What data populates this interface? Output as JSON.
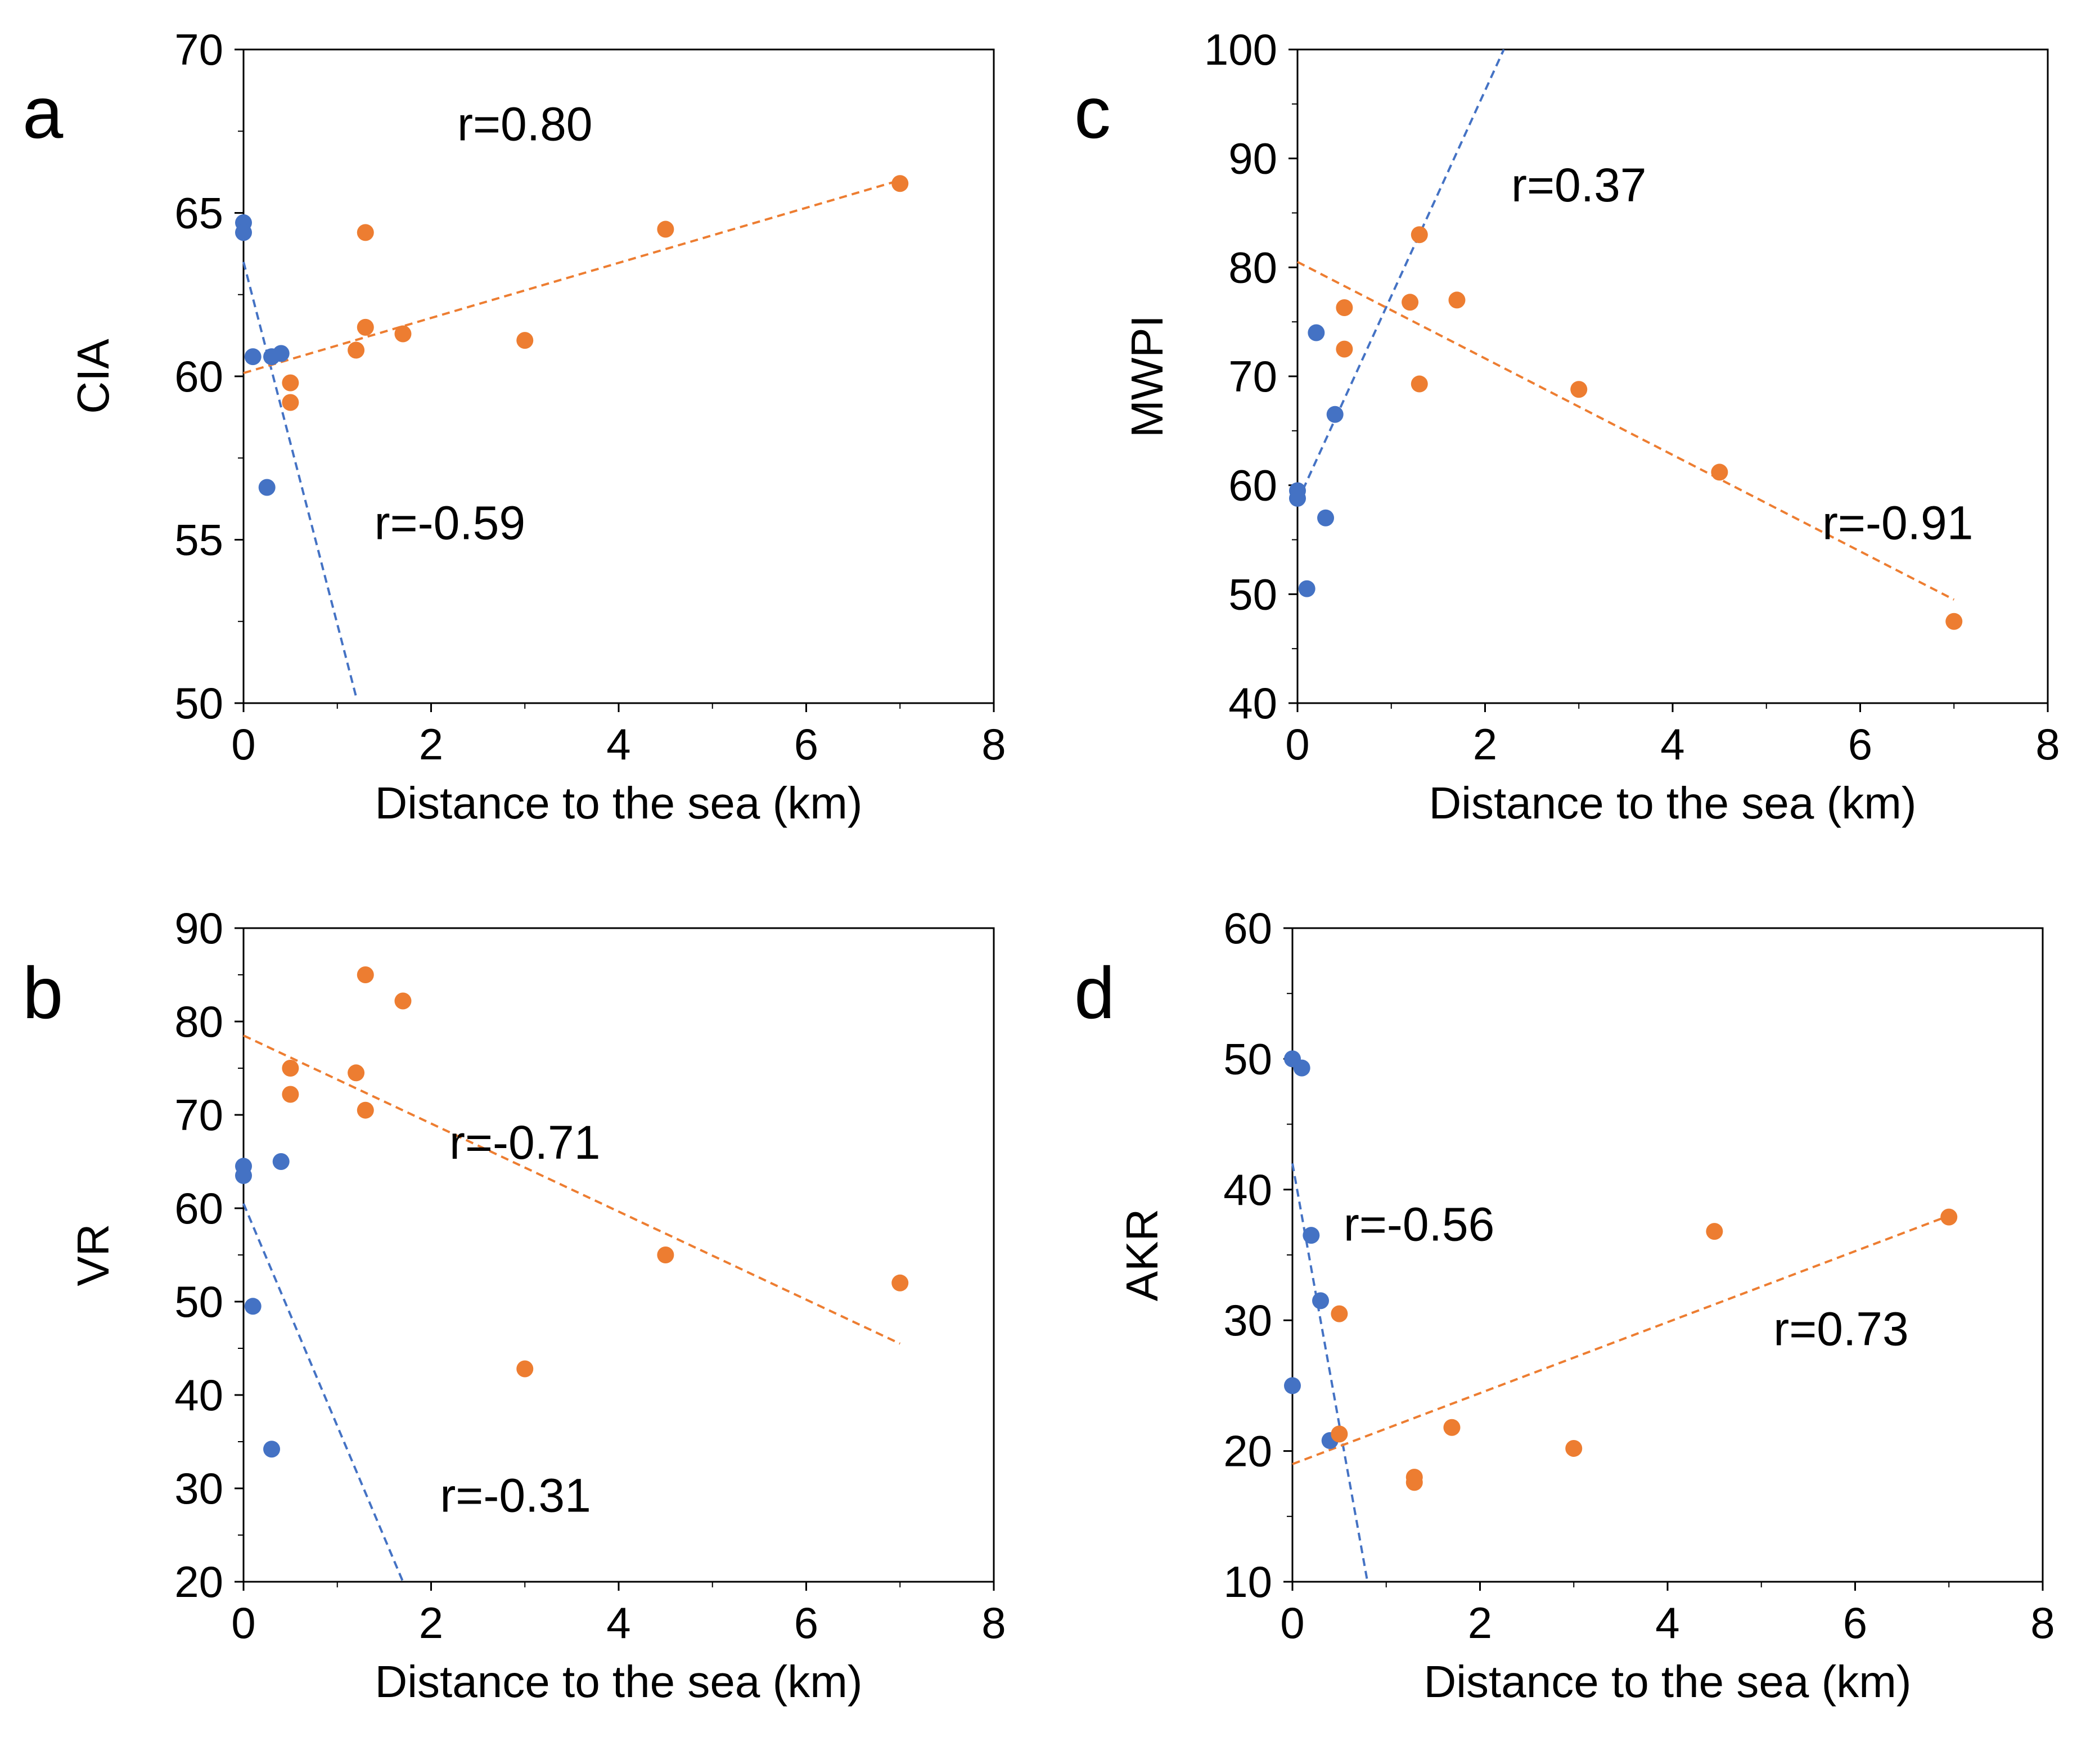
{
  "figure": {
    "series_colors": {
      "blue": "#4472C4",
      "orange": "#ED7D31"
    },
    "text_color": "#000000"
  },
  "chart_data": [
    {
      "id": "a",
      "type": "scatter",
      "panel_label": "a",
      "xlabel": "Distance to the sea (km)",
      "ylabel": "CIA",
      "xlim": [
        0,
        8
      ],
      "ylim": [
        50,
        70
      ],
      "xticks": [
        0,
        2,
        4,
        6,
        8
      ],
      "yticks": [
        50,
        55,
        60,
        65,
        70
      ],
      "grid": false,
      "series": [
        {
          "name": "blue",
          "points": [
            [
              0,
              64.7
            ],
            [
              0,
              64.4
            ],
            [
              0.1,
              60.6
            ],
            [
              0.3,
              60.6
            ],
            [
              0.4,
              60.7
            ],
            [
              0.25,
              56.6
            ]
          ],
          "trendline": [
            [
              0,
              63.5
            ],
            [
              1.2,
              50.2
            ]
          ]
        },
        {
          "name": "orange",
          "points": [
            [
              1.3,
              64.4
            ],
            [
              1.3,
              61.5
            ],
            [
              1.7,
              61.3
            ],
            [
              1.2,
              60.8
            ],
            [
              0.5,
              59.8
            ],
            [
              0.5,
              59.2
            ],
            [
              3.0,
              61.1
            ],
            [
              4.5,
              64.5
            ],
            [
              7.0,
              65.9
            ]
          ],
          "trendline": [
            [
              0,
              60.1
            ],
            [
              7.0,
              66.0
            ]
          ]
        }
      ],
      "annotations": [
        {
          "text": "r=0.80",
          "series": "orange",
          "anchor": [
            3.0,
            67.7
          ]
        },
        {
          "text": "r=-0.59",
          "series": "blue",
          "anchor": [
            2.2,
            55.5
          ]
        }
      ]
    },
    {
      "id": "b",
      "type": "scatter",
      "panel_label": "b",
      "xlabel": "Distance to the sea (km)",
      "ylabel": "VR",
      "xlim": [
        0,
        8
      ],
      "ylim": [
        20,
        90
      ],
      "xticks": [
        0,
        2,
        4,
        6,
        8
      ],
      "yticks": [
        20,
        30,
        40,
        50,
        60,
        70,
        80,
        90
      ],
      "grid": false,
      "series": [
        {
          "name": "blue",
          "points": [
            [
              0,
              64.5
            ],
            [
              0,
              63.5
            ],
            [
              0.4,
              65.0
            ],
            [
              0.1,
              49.5
            ],
            [
              0.3,
              34.2
            ]
          ],
          "trendline": [
            [
              0,
              60.5
            ],
            [
              1.7,
              20.0
            ]
          ]
        },
        {
          "name": "orange",
          "points": [
            [
              1.3,
              85.0
            ],
            [
              1.7,
              82.2
            ],
            [
              0.5,
              75.0
            ],
            [
              1.2,
              74.5
            ],
            [
              0.5,
              72.2
            ],
            [
              1.3,
              70.5
            ],
            [
              4.5,
              55.0
            ],
            [
              7.0,
              52.0
            ],
            [
              3.0,
              42.8
            ]
          ],
          "trendline": [
            [
              0,
              78.5
            ],
            [
              7.0,
              45.5
            ]
          ]
        }
      ],
      "annotations": [
        {
          "text": "r=-0.71",
          "series": "orange",
          "anchor": [
            3.0,
            67.0
          ]
        },
        {
          "text": "r=-0.31",
          "series": "blue",
          "anchor": [
            2.9,
            29.2
          ]
        }
      ]
    },
    {
      "id": "c",
      "type": "scatter",
      "panel_label": "c",
      "xlabel": "Distance to the sea (km)",
      "ylabel": "MWPI",
      "xlim": [
        0,
        8
      ],
      "ylim": [
        40,
        100
      ],
      "xticks": [
        0,
        2,
        4,
        6,
        8
      ],
      "yticks": [
        40,
        50,
        60,
        70,
        80,
        90,
        100
      ],
      "grid": false,
      "series": [
        {
          "name": "blue",
          "points": [
            [
              0.2,
              74.0
            ],
            [
              0.4,
              66.5
            ],
            [
              0,
              59.5
            ],
            [
              0,
              58.8
            ],
            [
              0.3,
              57.0
            ],
            [
              0.1,
              50.5
            ]
          ],
          "trendline": [
            [
              0,
              58.5
            ],
            [
              2.2,
              100.0
            ]
          ]
        },
        {
          "name": "orange",
          "points": [
            [
              1.3,
              83.0
            ],
            [
              0.5,
              76.3
            ],
            [
              1.2,
              76.8
            ],
            [
              1.7,
              77.0
            ],
            [
              0.5,
              72.5
            ],
            [
              1.3,
              69.3
            ],
            [
              3.0,
              68.8
            ],
            [
              4.5,
              61.2
            ],
            [
              7.0,
              47.5
            ]
          ],
          "trendline": [
            [
              0,
              80.5
            ],
            [
              7.0,
              49.5
            ]
          ]
        }
      ],
      "annotations": [
        {
          "text": "r=0.37",
          "series": "blue",
          "anchor": [
            3.0,
            87.5
          ]
        },
        {
          "text": "r=-0.91",
          "series": "orange",
          "anchor": [
            6.4,
            56.5
          ]
        }
      ]
    },
    {
      "id": "d",
      "type": "scatter",
      "panel_label": "d",
      "xlabel": "Distance to the sea (km)",
      "ylabel": "AKR",
      "xlim": [
        0,
        8
      ],
      "ylim": [
        10,
        60
      ],
      "xticks": [
        0,
        2,
        4,
        6,
        8
      ],
      "yticks": [
        10,
        20,
        30,
        40,
        50,
        60
      ],
      "grid": false,
      "series": [
        {
          "name": "blue",
          "points": [
            [
              0,
              50.0
            ],
            [
              0.1,
              49.3
            ],
            [
              0.2,
              36.5
            ],
            [
              0.3,
              31.5
            ],
            [
              0,
              25.0
            ],
            [
              0.4,
              20.8
            ]
          ],
          "trendline": [
            [
              0,
              42.0
            ],
            [
              0.8,
              10.0
            ]
          ]
        },
        {
          "name": "orange",
          "points": [
            [
              4.5,
              36.8
            ],
            [
              7.0,
              37.9
            ],
            [
              0.5,
              30.5
            ],
            [
              0.5,
              21.3
            ],
            [
              1.7,
              21.8
            ],
            [
              1.3,
              18.0
            ],
            [
              1.3,
              17.6
            ],
            [
              3.0,
              20.2
            ]
          ],
          "trendline": [
            [
              0,
              19.0
            ],
            [
              7.0,
              38.0
            ]
          ]
        }
      ],
      "annotations": [
        {
          "text": "r=-0.56",
          "series": "blue",
          "anchor": [
            1.35,
            37.3
          ]
        },
        {
          "text": "r=0.73",
          "series": "orange",
          "anchor": [
            5.85,
            29.3
          ]
        }
      ]
    }
  ]
}
